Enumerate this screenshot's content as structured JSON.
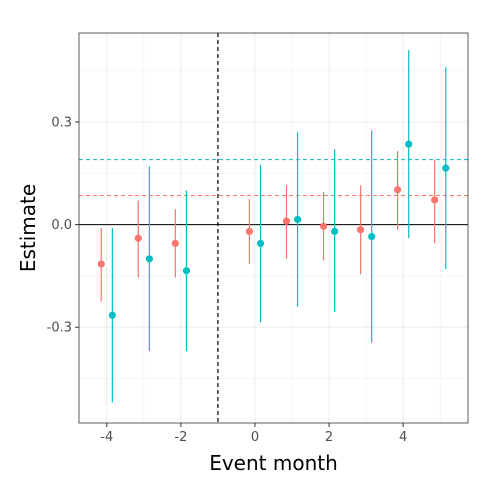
{
  "chart_data": {
    "type": "scatter",
    "title": "",
    "xlabel": "Event month",
    "ylabel": "Estimate",
    "xlim": [
      -4.75,
      5.75
    ],
    "ylim": [
      -0.58,
      0.56
    ],
    "x_ticks": [
      -4,
      -2,
      0,
      2,
      4
    ],
    "x_tick_labels": [
      "-4",
      "-2",
      "0",
      "2",
      "4"
    ],
    "y_ticks": [
      -0.3,
      0.0,
      0.3
    ],
    "y_tick_labels": [
      "-0.3",
      "0.0",
      "0.3"
    ],
    "grid": true,
    "legend": "none",
    "reference_lines": {
      "vertical_dashed_x": -1,
      "horizontal_solid_y": 0
    },
    "series": [
      {
        "color": "#F8766D",
        "mean_line_y": 0.085,
        "points": [
          {
            "x": -4.15,
            "y": -0.115,
            "lo": -0.225,
            "hi": -0.01
          },
          {
            "x": -3.15,
            "y": -0.04,
            "lo": -0.155,
            "hi": 0.07
          },
          {
            "x": -2.15,
            "y": -0.055,
            "lo": -0.155,
            "hi": 0.045
          },
          {
            "x": -0.15,
            "y": -0.02,
            "lo": -0.115,
            "hi": 0.075
          },
          {
            "x": 0.85,
            "y": 0.01,
            "lo": -0.1,
            "hi": 0.115
          },
          {
            "x": 1.85,
            "y": -0.005,
            "lo": -0.105,
            "hi": 0.095
          },
          {
            "x": 2.85,
            "y": -0.015,
            "lo": -0.145,
            "hi": 0.115
          },
          {
            "x": 3.85,
            "y": 0.102,
            "lo": -0.015,
            "hi": 0.215
          },
          {
            "x": 4.85,
            "y": 0.072,
            "lo": -0.055,
            "hi": 0.19
          }
        ]
      },
      {
        "color": "#00BFC4",
        "mean_line_y": 0.19,
        "points": [
          {
            "x": -3.85,
            "y": -0.265,
            "lo": -0.52,
            "hi": -0.01
          },
          {
            "x": -2.85,
            "y": -0.1,
            "lo": -0.37,
            "hi": 0.17
          },
          {
            "x": -1.85,
            "y": -0.135,
            "lo": -0.37,
            "hi": 0.1
          },
          {
            "x": 0.15,
            "y": -0.055,
            "lo": -0.285,
            "hi": 0.175
          },
          {
            "x": 1.15,
            "y": 0.015,
            "lo": -0.24,
            "hi": 0.27
          },
          {
            "x": 2.15,
            "y": -0.02,
            "lo": -0.255,
            "hi": 0.22
          },
          {
            "x": 3.15,
            "y": -0.035,
            "lo": -0.345,
            "hi": 0.275
          },
          {
            "x": 4.15,
            "y": 0.235,
            "lo": -0.04,
            "hi": 0.51
          },
          {
            "x": 5.15,
            "y": 0.165,
            "lo": -0.13,
            "hi": 0.46
          }
        ]
      }
    ]
  }
}
